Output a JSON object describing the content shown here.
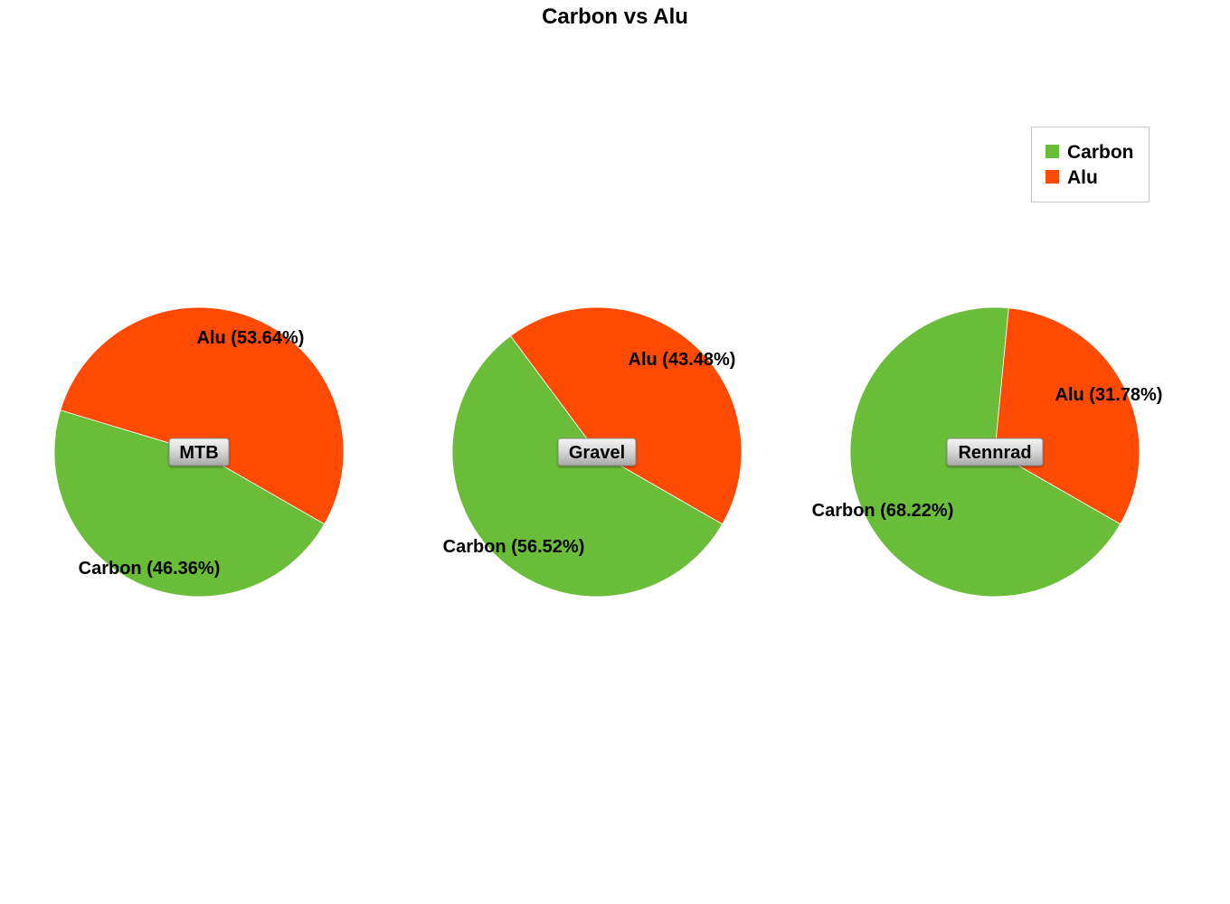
{
  "chart_data": {
    "type": "pie",
    "title": "Carbon vs Alu",
    "legend_position": "top-right",
    "series_colors": {
      "Carbon": "#6abd39",
      "Alu": "#fe4a02"
    },
    "legend": [
      {
        "name": "Carbon",
        "color": "#6abd39"
      },
      {
        "name": "Alu",
        "color": "#fe4a02"
      }
    ],
    "pies": [
      {
        "name": "MTB",
        "slices": [
          {
            "category": "Carbon",
            "value": 46.36,
            "label": "Carbon (46.36%)"
          },
          {
            "category": "Alu",
            "value": 53.64,
            "label": "Alu (53.64%)"
          }
        ]
      },
      {
        "name": "Gravel",
        "slices": [
          {
            "category": "Carbon",
            "value": 56.52,
            "label": "Carbon (56.52%)"
          },
          {
            "category": "Alu",
            "value": 43.48,
            "label": "Alu (43.48%)"
          }
        ]
      },
      {
        "name": "Rennrad",
        "slices": [
          {
            "category": "Carbon",
            "value": 68.22,
            "label": "Carbon (68.22%)"
          },
          {
            "category": "Alu",
            "value": 31.78,
            "label": "Alu (31.78%)"
          }
        ]
      }
    ]
  }
}
